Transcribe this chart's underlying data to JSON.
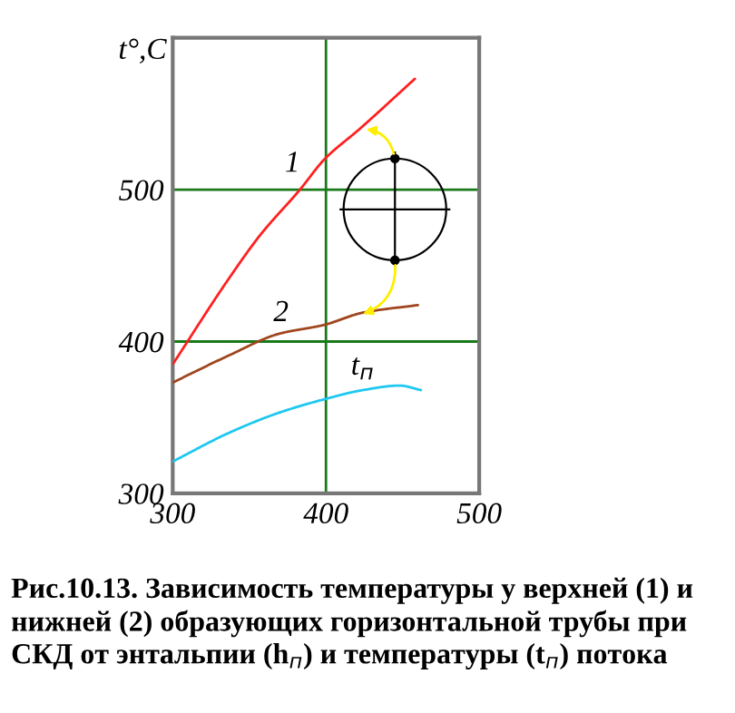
{
  "chart_data": {
    "type": "line",
    "ylabel": "t°,C",
    "xlim": [
      300,
      500
    ],
    "ylim": [
      300,
      600
    ],
    "xticks": [
      300,
      400,
      500
    ],
    "yticks": [
      300,
      400,
      500
    ],
    "grid": true,
    "marker": "none",
    "line_style": "solid",
    "series": [
      {
        "name": "1",
        "color": "#ff2020",
        "x": [
          300,
          337,
          357,
          383,
          399,
          422,
          458
        ],
        "values": [
          385,
          442,
          470,
          500,
          520,
          540,
          573
        ]
      },
      {
        "name": "2",
        "color": "#a0461e",
        "x": [
          300,
          337,
          369,
          399,
          424,
          460
        ],
        "values": [
          373,
          391,
          405,
          411,
          419,
          424
        ]
      },
      {
        "name": "t$_{п}$",
        "color": "#1ec8f0",
        "x": [
          300,
          337,
          369,
          399,
          424,
          448,
          462
        ],
        "values": [
          321,
          340,
          353,
          362,
          368,
          371,
          368
        ]
      }
    ],
    "annotations": [
      "Рис.10.13. Зависимость температуры у верхней (1) и нижней (2) образующих горизонтальной трубы при СКД от энтальпии (h$_{п}$) и температуры (t$_{п}$) потока"
    ]
  }
}
